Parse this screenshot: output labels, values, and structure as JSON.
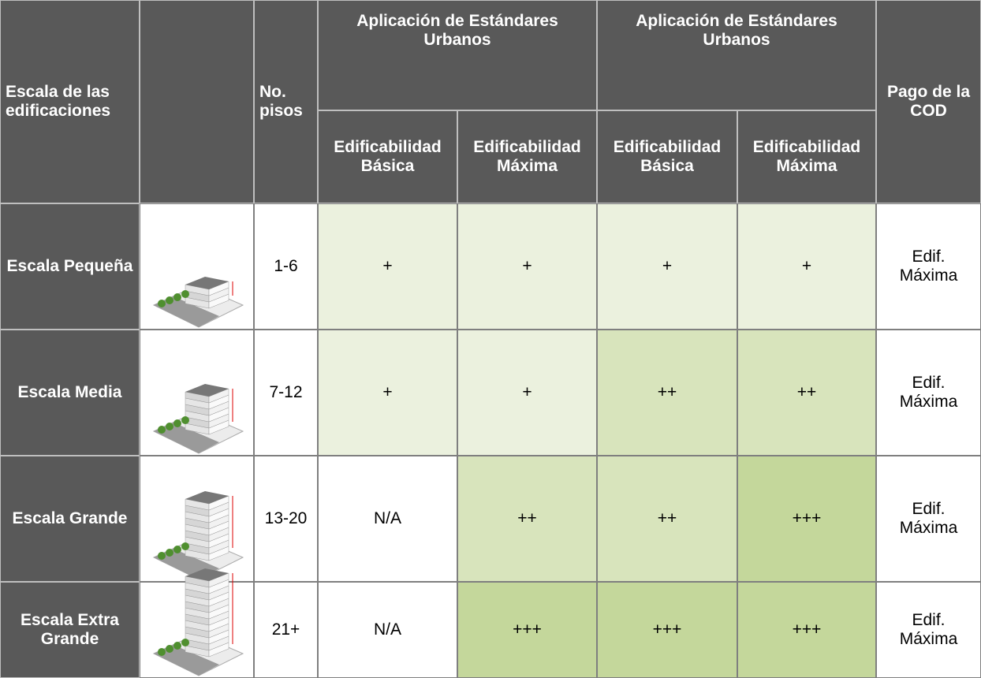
{
  "table": {
    "header": {
      "scale": "Escala de las edificaciones",
      "floors": "No. pisos",
      "groups": [
        "Aplicación de Estándares Urbanos",
        "Aplicación de Estándares Urbanos"
      ],
      "sub": [
        "Edificabilidad Básica",
        "Edificabilidad Máxima",
        "Edificabilidad Básica",
        "Edificabilidad Máxima"
      ],
      "payment": "Pago de la COD"
    },
    "rows": [
      [
        "Escala Pequeña",
        "1-6",
        "+",
        "+",
        "+",
        "+",
        "Edif. Máxima"
      ],
      [
        "Escala Media",
        "7-12",
        "+",
        "+",
        "++",
        "++",
        "Edif. Máxima"
      ],
      [
        "Escala Grande",
        "13-20",
        "N/A",
        "++",
        "++",
        "+++",
        "Edif. Máxima"
      ],
      [
        "Escala Extra Grande",
        "21+",
        "N/A",
        "+++",
        "+++",
        "+++",
        "Edif. Máxima"
      ]
    ]
  }
}
